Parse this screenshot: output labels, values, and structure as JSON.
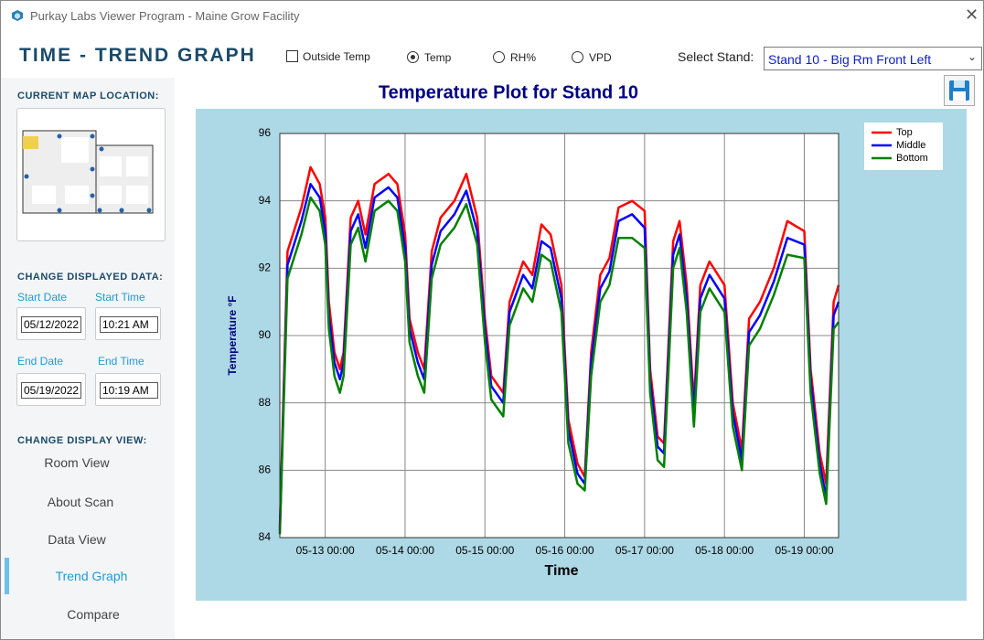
{
  "window": {
    "title": "Purkay Labs Viewer Program - Maine Grow Facility"
  },
  "header": {
    "title": "TIME - TREND GRAPH",
    "outside_temp": {
      "label": "Outside Temp",
      "checked": false
    },
    "measures": {
      "options": [
        "Temp",
        "RH%",
        "VPD"
      ],
      "selected": 0
    },
    "stand_label": "Select Stand:",
    "stand_value": "Stand 10 - Big Rm Front Left"
  },
  "sidebar": {
    "map_heading": "CURRENT MAP LOCATION:",
    "data_heading": "CHANGE DISPLAYED DATA:",
    "start_date_label": "Start Date",
    "start_time_label": "Start Time",
    "start_date": "05/12/2022",
    "start_time": "10:21 AM",
    "end_date_label": "End Date",
    "end_time_label": "End Time",
    "end_date": "05/19/2022",
    "end_time": "10:19 AM",
    "view_heading": "CHANGE DISPLAY VIEW:",
    "nav": {
      "items": [
        "Room View",
        "About Scan",
        "Data View",
        "Trend Graph",
        "Compare"
      ],
      "active": 3
    }
  },
  "chart_data": {
    "type": "line",
    "title": "Temperature Plot for Stand 10",
    "x_label": "Time",
    "y_label": "Temperature °F",
    "x": [
      "05-12 10:21",
      "05-12 12:40",
      "05-12 16:50",
      "05-12 19:35",
      "05-12 22:20",
      "05-13 00:00",
      "05-13 01:05",
      "05-13 02:45",
      "05-13 04:25",
      "05-13 05:30",
      "05-13 07:40",
      "05-13 09:55",
      "05-13 12:05",
      "05-13 14:50",
      "05-13 19:00",
      "05-13 21:40",
      "05-14 00:00",
      "05-14 01:20",
      "05-14 03:50",
      "05-14 05:45",
      "05-14 08:00",
      "05-14 10:40",
      "05-14 14:50",
      "05-14 18:25",
      "05-14 21:40",
      "05-15 00:00",
      "05-15 01:55",
      "05-15 05:30",
      "05-15 07:25",
      "05-15 11:30",
      "05-15 14:15",
      "05-15 17:00",
      "05-15 19:45",
      "05-15 23:00",
      "05-16 01:05",
      "05-16 03:50",
      "05-16 06:00",
      "05-16 07:55",
      "05-16 10:40",
      "05-16 13:25",
      "05-16 16:10",
      "05-16 20:15",
      "05-17 00:00",
      "05-17 01:40",
      "05-17 03:55",
      "05-17 05:50",
      "05-17 08:35",
      "05-17 10:30",
      "05-17 12:40",
      "05-17 14:50",
      "05-17 16:45",
      "05-17 19:30",
      "05-18 00:00",
      "05-18 02:30",
      "05-18 05:15",
      "05-18 07:25",
      "05-18 10:40",
      "05-18 14:50",
      "05-18 18:55",
      "05-19 00:00",
      "05-19 01:55",
      "05-19 04:40",
      "05-19 06:35",
      "05-19 08:50",
      "05-19 10:19"
    ],
    "series": [
      {
        "name": "Top",
        "color": "#ff0000",
        "values": [
          84.3,
          92.5,
          93.8,
          95.0,
          94.5,
          93.5,
          91,
          89.5,
          89,
          89.5,
          93.5,
          94.0,
          93.0,
          94.5,
          94.8,
          94.5,
          93,
          90.5,
          89.5,
          89,
          92.5,
          93.5,
          94,
          94.8,
          93.5,
          90.5,
          88.8,
          88.3,
          91,
          92.2,
          91.8,
          93.3,
          93,
          91.5,
          87.5,
          86.2,
          85.8,
          89.5,
          91.8,
          92.3,
          93.8,
          94.0,
          93.7,
          89,
          87,
          86.8,
          92.8,
          93.4,
          91.5,
          88,
          91.5,
          92.2,
          91.5,
          88,
          86.6,
          90.5,
          91,
          92,
          93.4,
          93.1,
          89,
          86.5,
          85.6,
          91,
          91.5
        ]
      },
      {
        "name": "Middle",
        "color": "#0000ff",
        "values": [
          84.2,
          92.1,
          93.4,
          94.5,
          94.1,
          93.1,
          90.6,
          89.2,
          88.7,
          89.2,
          93.1,
          93.6,
          92.6,
          94.1,
          94.4,
          94.1,
          92.6,
          90.2,
          89.2,
          88.7,
          92.1,
          93.1,
          93.6,
          94.3,
          93.1,
          90.2,
          88.5,
          88.0,
          90.7,
          91.8,
          91.4,
          92.8,
          92.6,
          91.1,
          87.2,
          85.9,
          85.6,
          89.2,
          91.4,
          91.9,
          93.4,
          93.6,
          93.2,
          88.7,
          86.7,
          86.5,
          92.4,
          93.0,
          91.1,
          87.7,
          91.1,
          91.8,
          91.1,
          87.7,
          86.3,
          90.1,
          90.6,
          91.6,
          92.9,
          92.7,
          88.7,
          86.2,
          85.2,
          90.6,
          91.0
        ]
      },
      {
        "name": "Bottom",
        "color": "#008000",
        "values": [
          84.1,
          91.7,
          93.0,
          94.1,
          93.7,
          92.7,
          90.2,
          88.8,
          88.3,
          88.8,
          92.7,
          93.2,
          92.2,
          93.7,
          94.0,
          93.7,
          92.2,
          89.8,
          88.8,
          88.3,
          91.7,
          92.7,
          93.2,
          93.9,
          92.7,
          89.8,
          88.1,
          87.6,
          90.3,
          91.4,
          91.0,
          92.4,
          92.2,
          90.7,
          86.8,
          85.6,
          85.4,
          88.8,
          91.0,
          91.5,
          92.9,
          92.9,
          92.6,
          88.3,
          86.3,
          86.1,
          92.0,
          92.6,
          90.7,
          87.3,
          90.7,
          91.4,
          90.7,
          87.3,
          86.0,
          89.7,
          90.2,
          91.2,
          92.4,
          92.3,
          88.3,
          85.9,
          85.0,
          90.2,
          90.4
        ]
      }
    ],
    "xlim": [
      "05-12 10:21",
      "05-19 10:19"
    ],
    "xticks": [
      "05-13 00:00",
      "05-14 00:00",
      "05-15 00:00",
      "05-16 00:00",
      "05-17 00:00",
      "05-18 00:00",
      "05-19 00:00"
    ],
    "ylim": [
      84,
      96
    ],
    "yticks": [
      84,
      86,
      88,
      90,
      92,
      94,
      96
    ],
    "grid": true,
    "legend": "upper right"
  }
}
